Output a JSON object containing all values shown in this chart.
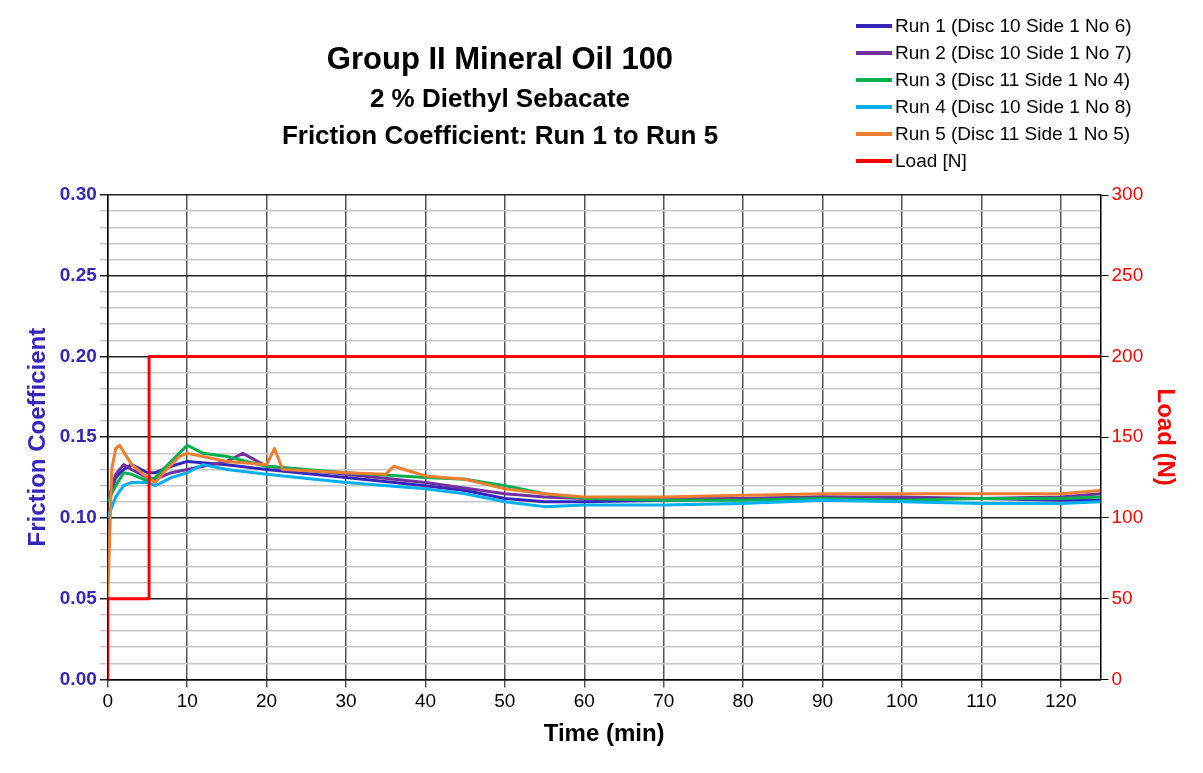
{
  "chart_data": {
    "type": "line",
    "title": "Group II Mineral Oil 100",
    "subtitle": "2 % Diethyl Sebacate\nFriction Coefficient: Run 1 to Run 5",
    "xlabel": "Time (min)",
    "ylabel": "Friction Coefficient",
    "y2label": "Load (N)",
    "xlim": [
      0,
      125
    ],
    "xticks": [
      0,
      10,
      20,
      30,
      40,
      50,
      60,
      70,
      80,
      90,
      100,
      110,
      120
    ],
    "ylim": [
      0,
      0.3
    ],
    "yticks": [
      {
        "value": 0,
        "label": "0.00"
      },
      {
        "value": 0.01,
        "label": null
      },
      {
        "value": 0.02,
        "label": null
      },
      {
        "value": 0.03,
        "label": null
      },
      {
        "value": 0.04,
        "label": null
      },
      {
        "value": 0.05,
        "label": "0.05"
      },
      {
        "value": 0.06,
        "label": null
      },
      {
        "value": 0.07,
        "label": null
      },
      {
        "value": 0.08,
        "label": null
      },
      {
        "value": 0.09,
        "label": null
      },
      {
        "value": 0.1,
        "label": "0.10"
      },
      {
        "value": 0.11,
        "label": null
      },
      {
        "value": 0.12,
        "label": null
      },
      {
        "value": 0.13,
        "label": null
      },
      {
        "value": 0.14,
        "label": null
      },
      {
        "value": 0.15,
        "label": "0.15"
      },
      {
        "value": 0.16,
        "label": null
      },
      {
        "value": 0.17,
        "label": null
      },
      {
        "value": 0.18,
        "label": null
      },
      {
        "value": 0.19,
        "label": null
      },
      {
        "value": 0.2,
        "label": "0.20"
      },
      {
        "value": 0.21,
        "label": null
      },
      {
        "value": 0.22,
        "label": null
      },
      {
        "value": 0.23,
        "label": null
      },
      {
        "value": 0.24,
        "label": null
      },
      {
        "value": 0.25,
        "label": "0.25"
      },
      {
        "value": 0.26,
        "label": null
      },
      {
        "value": 0.27,
        "label": null
      },
      {
        "value": 0.28,
        "label": null
      },
      {
        "value": 0.29,
        "label": null
      },
      {
        "value": 0.3,
        "label": "0.30"
      }
    ],
    "y2lim": [
      0,
      300
    ],
    "y2ticks": [
      0,
      50,
      100,
      150,
      200,
      250,
      300
    ],
    "grid": true,
    "legend": "top right",
    "marker": "none",
    "line_style": "solid",
    "series": [
      {
        "name": "Run 1 (Disc 10 Side 1 No 6)",
        "color": "#3326b8",
        "x": [
          0,
          1,
          2,
          3,
          5,
          6,
          8,
          10,
          15,
          20,
          30,
          40,
          45,
          50,
          55,
          60,
          70,
          80,
          90,
          100,
          110,
          120,
          125
        ],
        "values": [
          0.11,
          0.125,
          0.13,
          0.133,
          0.128,
          0.128,
          0.132,
          0.135,
          0.133,
          0.13,
          0.125,
          0.12,
          0.117,
          0.112,
          0.11,
          0.11,
          0.111,
          0.112,
          0.113,
          0.112,
          0.112,
          0.111,
          0.111
        ]
      },
      {
        "name": "Run 2 (Disc 10 Side 1 No 7)",
        "color": "#7030a0",
        "x": [
          0,
          1,
          2,
          3,
          5,
          6,
          8,
          10,
          15,
          17,
          20,
          30,
          40,
          50,
          55,
          60,
          70,
          80,
          90,
          100,
          110,
          120,
          125
        ],
        "values": [
          0.11,
          0.127,
          0.133,
          0.13,
          0.125,
          0.124,
          0.128,
          0.13,
          0.135,
          0.14,
          0.132,
          0.127,
          0.122,
          0.115,
          0.113,
          0.112,
          0.112,
          0.112,
          0.113,
          0.113,
          0.112,
          0.113,
          0.115
        ]
      },
      {
        "name": "Run 3 (Disc 11 Side 1 No 4)",
        "color": "#00b050",
        "x": [
          0,
          1,
          2,
          3,
          5,
          6,
          8,
          10,
          12,
          15,
          20,
          25,
          30,
          40,
          45,
          50,
          55,
          60,
          70,
          80,
          90,
          100,
          110,
          120,
          125
        ],
        "values": [
          0.11,
          0.12,
          0.128,
          0.127,
          0.123,
          0.125,
          0.135,
          0.145,
          0.14,
          0.138,
          0.132,
          0.13,
          0.128,
          0.125,
          0.124,
          0.12,
          0.115,
          0.112,
          0.111,
          0.111,
          0.112,
          0.111,
          0.112,
          0.112,
          0.113
        ]
      },
      {
        "name": "Run 4 (Disc 10 Side 1 No 8)",
        "color": "#00b0f0",
        "x": [
          0,
          1,
          2,
          3,
          5,
          6,
          8,
          10,
          12,
          15,
          20,
          30,
          40,
          45,
          50,
          55,
          60,
          70,
          80,
          90,
          100,
          110,
          120,
          125
        ],
        "values": [
          0.1,
          0.113,
          0.12,
          0.122,
          0.122,
          0.12,
          0.125,
          0.128,
          0.133,
          0.13,
          0.127,
          0.122,
          0.118,
          0.115,
          0.11,
          0.107,
          0.108,
          0.108,
          0.109,
          0.111,
          0.11,
          0.109,
          0.109,
          0.11
        ]
      },
      {
        "name": "Run 5 (Disc 11 Side 1 No 5)",
        "color": "#ed7d31",
        "x": [
          0,
          0.5,
          1,
          1.5,
          3,
          5,
          6,
          7,
          9,
          10,
          12,
          15,
          20,
          21,
          22,
          30,
          35,
          36,
          40,
          45,
          50,
          55,
          60,
          70,
          80,
          90,
          100,
          110,
          120,
          125
        ],
        "values": [
          0.05,
          0.13,
          0.143,
          0.145,
          0.133,
          0.125,
          0.122,
          0.128,
          0.138,
          0.14,
          0.138,
          0.135,
          0.133,
          0.143,
          0.13,
          0.128,
          0.127,
          0.132,
          0.126,
          0.124,
          0.118,
          0.115,
          0.113,
          0.113,
          0.114,
          0.115,
          0.115,
          0.115,
          0.115,
          0.117
        ]
      },
      {
        "name": "Load [N]",
        "color": "#ff0000",
        "axis": "y2",
        "x": [
          0,
          0,
          5.2,
          5.2,
          125
        ],
        "values": [
          0,
          50,
          50,
          200,
          200
        ]
      }
    ]
  }
}
